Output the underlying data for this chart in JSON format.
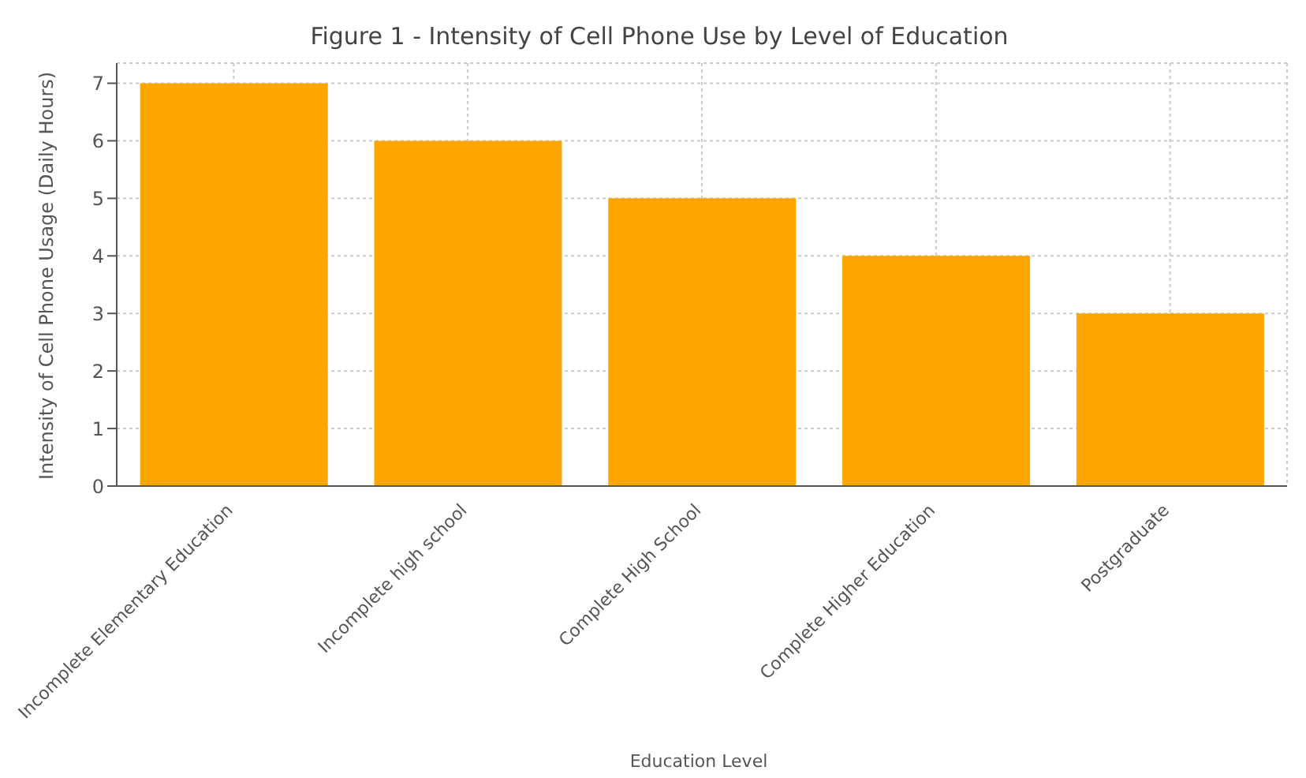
{
  "chart_data": {
    "type": "bar",
    "title": "Figure 1 - Intensity of Cell Phone Use by Level of Education",
    "xlabel": "Education Level",
    "ylabel": "Intensity of Cell Phone Usage (Daily Hours)",
    "categories": [
      "Incomplete Elementary Education",
      "Incomplete high school",
      "Complete High School",
      "Complete Higher Education",
      "Postgraduate"
    ],
    "values": [
      7,
      6,
      5,
      4,
      3
    ],
    "color": "#ffa500",
    "ylim": [
      0,
      7.35
    ],
    "yticks": [
      0,
      1,
      2,
      3,
      4,
      5,
      6,
      7
    ],
    "grid": true
  }
}
